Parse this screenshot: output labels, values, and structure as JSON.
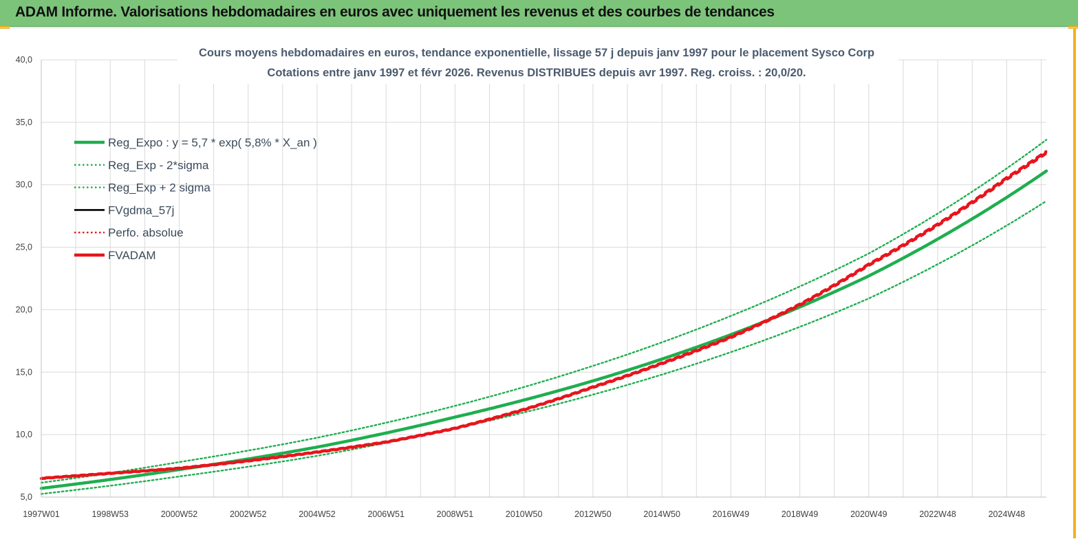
{
  "banner": {
    "title": "ADAM Informe. Valorisations hebdomadaires en euros avec uniquement les revenus et des courbes de tendances"
  },
  "colors": {
    "banner_bg": "#7cc47a",
    "accent_corner": "#f2b21b",
    "reg_green": "#1fae4f",
    "fvadam_red": "#e8141c",
    "fvgdma_black": "#000000"
  },
  "chart_data": {
    "type": "line",
    "title_lines": [
      "Cours moyens hebdomadaires en euros, tendance exponentielle, lissage 57 j depuis janv 1997 pour le placement Sysco Corp",
      "Cotations entre janv 1997 et févr 2026. Revenus DISTRIBUES depuis avr 1997. Reg. croiss. : 20,0/20."
    ],
    "xlabel": "",
    "ylabel": "",
    "x_range_years": [
      1997.0,
      2026.15
    ],
    "ylim": [
      5,
      40
    ],
    "y_ticks": [
      "5,0",
      "10,0",
      "15,0",
      "20,0",
      "25,0",
      "30,0",
      "35,0",
      "40,0"
    ],
    "x_ticks": [
      {
        "label": "1997W01",
        "year": 1997.0
      },
      {
        "label": "1998W53",
        "year": 1999.0
      },
      {
        "label": "2000W52",
        "year": 2001.0
      },
      {
        "label": "2002W52",
        "year": 2003.0
      },
      {
        "label": "2004W52",
        "year": 2005.0
      },
      {
        "label": "2006W51",
        "year": 2007.0
      },
      {
        "label": "2008W51",
        "year": 2009.0
      },
      {
        "label": "2010W50",
        "year": 2011.0
      },
      {
        "label": "2012W50",
        "year": 2013.0
      },
      {
        "label": "2014W50",
        "year": 2015.0
      },
      {
        "label": "2016W49",
        "year": 2017.0
      },
      {
        "label": "2018W49",
        "year": 2019.0
      },
      {
        "label": "2020W49",
        "year": 2021.0
      },
      {
        "label": "2022W48",
        "year": 2023.0
      },
      {
        "label": "2024W48",
        "year": 2025.0
      }
    ],
    "grid": "on",
    "legend_placement": "top-left",
    "series": [
      {
        "name": "Reg_Expo : y = 5,7 * exp( 5,8% *  X_an )",
        "style": "solid-thick",
        "color": "#1fae4f",
        "points": [
          [
            1997.0,
            5.7
          ],
          [
            2001.0,
            7.2
          ],
          [
            2005.0,
            9.0
          ],
          [
            2009.0,
            11.4
          ],
          [
            2013.0,
            14.3
          ],
          [
            2017.0,
            18.0
          ],
          [
            2021.0,
            22.7
          ],
          [
            2026.15,
            31.1
          ]
        ]
      },
      {
        "name": "Reg_Exp - 2*sigma",
        "style": "dotted",
        "color": "#1fae4f",
        "points": [
          [
            1997.0,
            5.25
          ],
          [
            2001.0,
            6.65
          ],
          [
            2005.0,
            8.3
          ],
          [
            2009.0,
            10.5
          ],
          [
            2013.0,
            13.2
          ],
          [
            2017.0,
            16.6
          ],
          [
            2021.0,
            20.9
          ],
          [
            2026.15,
            28.7
          ]
        ]
      },
      {
        "name": "Reg_Exp + 2 sigma",
        "style": "dotted",
        "color": "#1fae4f",
        "points": [
          [
            1997.0,
            6.15
          ],
          [
            2001.0,
            7.8
          ],
          [
            2005.0,
            9.75
          ],
          [
            2009.0,
            12.3
          ],
          [
            2013.0,
            15.5
          ],
          [
            2017.0,
            19.5
          ],
          [
            2021.0,
            24.5
          ],
          [
            2026.15,
            33.6
          ]
        ]
      },
      {
        "name": "FVgdma_57j",
        "style": "solid",
        "color": "#000000",
        "points": [
          [
            1997.0,
            6.5
          ],
          [
            1999.0,
            6.9
          ],
          [
            2001.0,
            7.3
          ],
          [
            2003.0,
            7.9
          ],
          [
            2005.0,
            8.6
          ],
          [
            2007.0,
            9.4
          ],
          [
            2009.0,
            10.5
          ],
          [
            2011.0,
            12.0
          ],
          [
            2013.0,
            13.8
          ],
          [
            2015.0,
            15.7
          ],
          [
            2017.0,
            17.8
          ],
          [
            2019.0,
            20.4
          ],
          [
            2021.0,
            23.6
          ],
          [
            2023.0,
            26.8
          ],
          [
            2025.0,
            30.5
          ],
          [
            2026.15,
            32.6
          ]
        ]
      },
      {
        "name": "Perfo. absolue",
        "style": "dotted",
        "color": "#e8141c",
        "points": []
      },
      {
        "name": "FVADAM",
        "style": "solid-thick",
        "color": "#e8141c",
        "points": [
          [
            1997.0,
            6.5
          ],
          [
            1999.0,
            6.9
          ],
          [
            2001.0,
            7.3
          ],
          [
            2003.0,
            7.9
          ],
          [
            2005.0,
            8.6
          ],
          [
            2007.0,
            9.4
          ],
          [
            2009.0,
            10.5
          ],
          [
            2011.0,
            12.0
          ],
          [
            2013.0,
            13.8
          ],
          [
            2015.0,
            15.7
          ],
          [
            2017.0,
            17.8
          ],
          [
            2019.0,
            20.4
          ],
          [
            2021.0,
            23.6
          ],
          [
            2023.0,
            26.8
          ],
          [
            2025.0,
            30.5
          ],
          [
            2026.15,
            32.6
          ]
        ]
      }
    ]
  }
}
